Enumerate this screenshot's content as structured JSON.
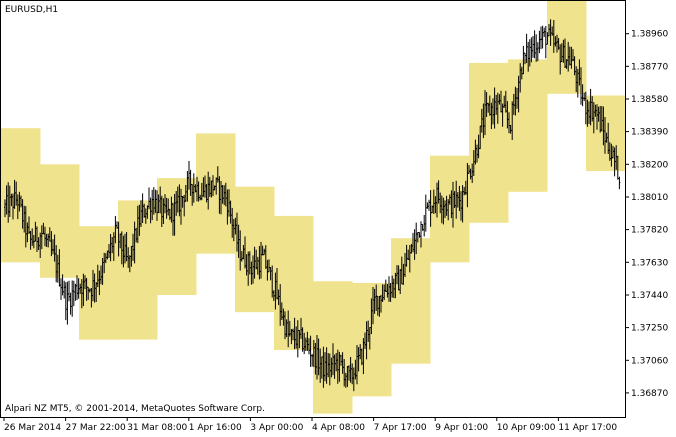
{
  "chart_data": {
    "type": "ohlc",
    "title": "EURUSD,H1",
    "footer": "Alpari NZ MT5, © 2001-2014, MetaQuotes Software Corp.",
    "y_ticks": [
      "1.38960",
      "1.38770",
      "1.38580",
      "1.38390",
      "1.38200",
      "1.38010",
      "1.37820",
      "1.37630",
      "1.37440",
      "1.37250",
      "1.37060",
      "1.36870"
    ],
    "x_ticks": [
      "26 Mar 2014",
      "27 Mar 22:00",
      "31 Mar 08:00",
      "1 Apr 16:00",
      "3 Apr 00:00",
      "4 Apr 08:00",
      "7 Apr 17:00",
      "9 Apr 01:00",
      "10 Apr 09:00",
      "11 Apr 17:00"
    ],
    "ylim": [
      1.3673,
      1.3915
    ],
    "band_color": "#f0e38e",
    "bar_color": "#000000",
    "daily_range_bands": [
      {
        "low": 1.3763,
        "high": 1.3841
      },
      {
        "low": 1.3754,
        "high": 1.382
      },
      {
        "low": 1.3718,
        "high": 1.3784
      },
      {
        "low": 1.3718,
        "high": 1.3799
      },
      {
        "low": 1.3744,
        "high": 1.3812
      },
      {
        "low": 1.3768,
        "high": 1.3838
      },
      {
        "low": 1.3734,
        "high": 1.3807
      },
      {
        "low": 1.3712,
        "high": 1.379
      },
      {
        "low": 1.3675,
        "high": 1.3752
      },
      {
        "low": 1.3685,
        "high": 1.3751
      },
      {
        "low": 1.3704,
        "high": 1.3777
      },
      {
        "low": 1.3763,
        "high": 1.3825
      },
      {
        "low": 1.3786,
        "high": 1.3879
      },
      {
        "low": 1.3804,
        "high": 1.3881
      },
      {
        "low": 1.3861,
        "high": 1.3915
      },
      {
        "low": 1.3816,
        "high": 1.386
      }
    ],
    "close_path": [
      1.3795,
      1.38,
      1.3775,
      1.378,
      1.3765,
      1.374,
      1.375,
      1.3748,
      1.376,
      1.378,
      1.3762,
      1.379,
      1.38,
      1.379,
      1.3795,
      1.381,
      1.3804,
      1.3808,
      1.38,
      1.377,
      1.376,
      1.3765,
      1.3745,
      1.372,
      1.3718,
      1.371,
      1.37,
      1.3705,
      1.3695,
      1.371,
      1.374,
      1.3748,
      1.3752,
      1.377,
      1.379,
      1.3802,
      1.3796,
      1.38,
      1.3822,
      1.385,
      1.3855,
      1.3843,
      1.388,
      1.389,
      1.3895,
      1.3885,
      1.388,
      1.3855,
      1.385,
      1.383,
      1.3812
    ]
  }
}
